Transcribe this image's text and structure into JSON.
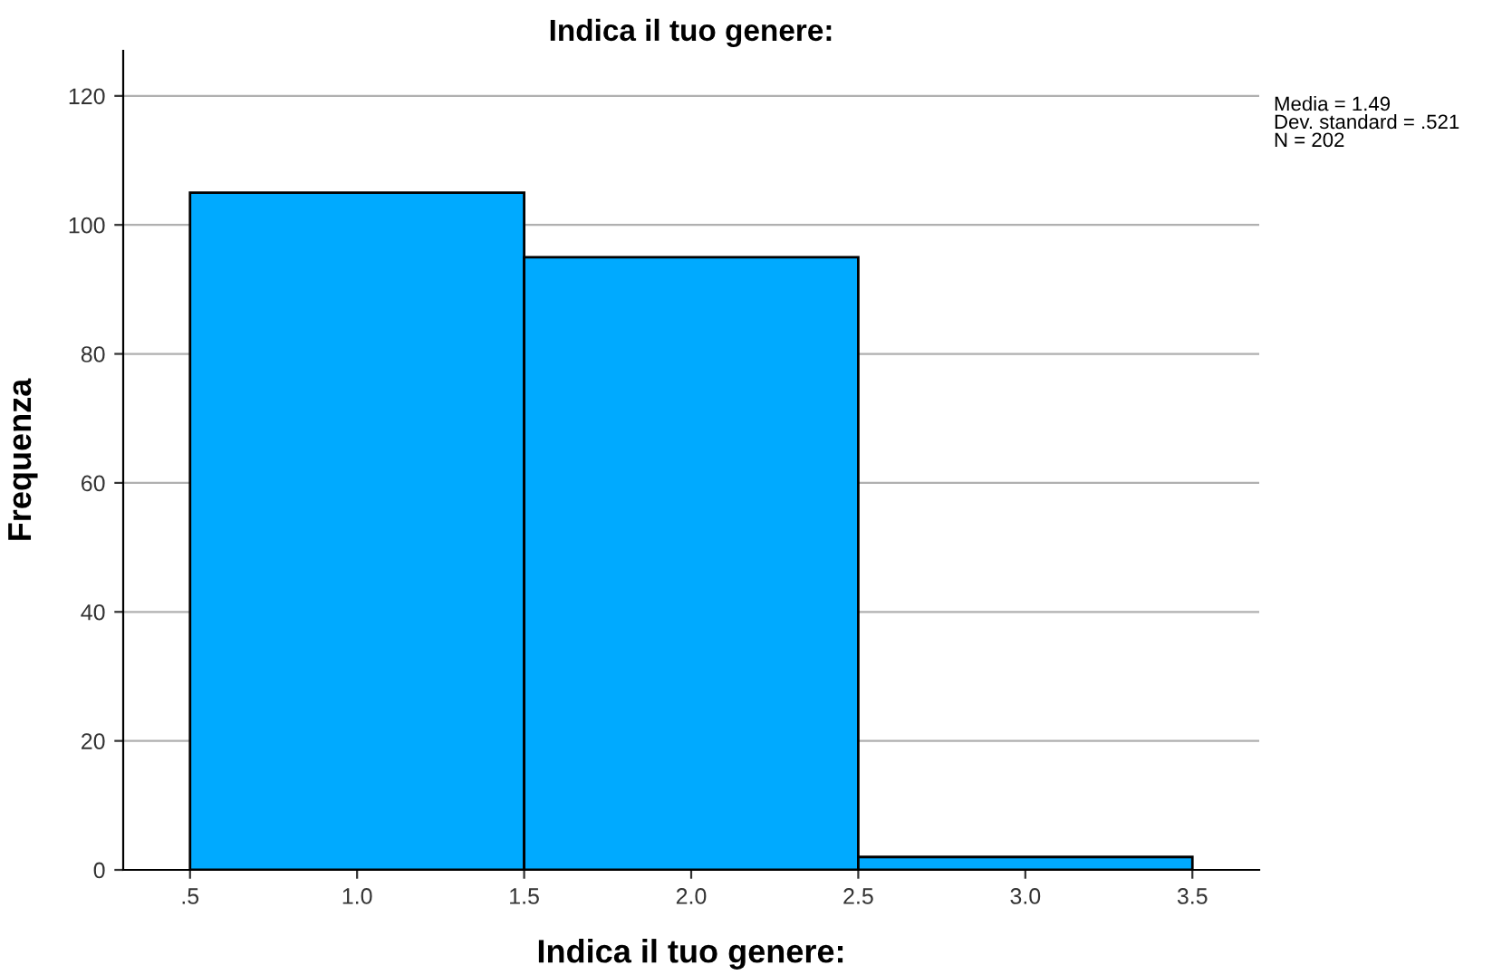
{
  "chart_data": {
    "type": "histogram",
    "title": "Indica il tuo genere:",
    "xlabel": "Indica il tuo genere:",
    "ylabel": "Frequenza",
    "bins": [
      0.5,
      1.5,
      2.5,
      3.5
    ],
    "values": [
      105,
      95,
      2
    ],
    "color": "#00aaff",
    "xlim": [
      0.3,
      3.7
    ],
    "xticks": [
      {
        "value": 0.5,
        "label": ".5"
      },
      {
        "value": 1.0,
        "label": "1.0"
      },
      {
        "value": 1.5,
        "label": "1.5"
      },
      {
        "value": 2.0,
        "label": "2.0"
      },
      {
        "value": 2.5,
        "label": "2.5"
      },
      {
        "value": 3.0,
        "label": "3.0"
      },
      {
        "value": 3.5,
        "label": "3.5"
      }
    ],
    "ylim": [
      0,
      127
    ],
    "yticks": [
      0,
      20,
      40,
      60,
      80,
      100,
      120
    ],
    "grid": "y",
    "annotations": [
      "Media = 1.49\nDev. standard = .521\nN = 202"
    ]
  }
}
